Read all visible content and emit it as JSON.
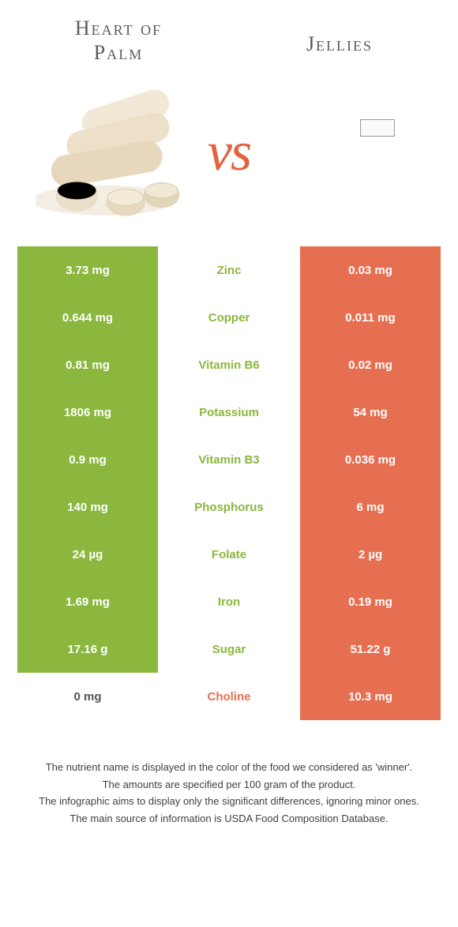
{
  "header": {
    "left_title": "Heart of Palm",
    "right_title": "Jellies",
    "vs": "vs"
  },
  "colors": {
    "left_food": "#8bb73e",
    "right_food": "#e76f51",
    "text_dark": "#555555",
    "background": "#ffffff"
  },
  "table": {
    "rows": [
      {
        "nutrient": "Zinc",
        "left": "3.73 mg",
        "right": "0.03 mg",
        "winner": "left"
      },
      {
        "nutrient": "Copper",
        "left": "0.644 mg",
        "right": "0.011 mg",
        "winner": "left"
      },
      {
        "nutrient": "Vitamin B6",
        "left": "0.81 mg",
        "right": "0.02 mg",
        "winner": "left"
      },
      {
        "nutrient": "Potassium",
        "left": "1806 mg",
        "right": "54 mg",
        "winner": "left"
      },
      {
        "nutrient": "Vitamin B3",
        "left": "0.9 mg",
        "right": "0.036 mg",
        "winner": "left"
      },
      {
        "nutrient": "Phosphorus",
        "left": "140 mg",
        "right": "6 mg",
        "winner": "left"
      },
      {
        "nutrient": "Folate",
        "left": "24 µg",
        "right": "2 µg",
        "winner": "left"
      },
      {
        "nutrient": "Iron",
        "left": "1.69 mg",
        "right": "0.19 mg",
        "winner": "left"
      },
      {
        "nutrient": "Sugar",
        "left": "17.16 g",
        "right": "51.22 g",
        "winner": "left"
      },
      {
        "nutrient": "Choline",
        "left": "0 mg",
        "right": "10.3 mg",
        "winner": "right"
      }
    ]
  },
  "footer": {
    "line1": "The nutrient name is displayed in the color of the food we considered as 'winner'.",
    "line2": "The amounts are specified per 100 gram of the product.",
    "line3": "The infographic aims to display only the significant differences, ignoring minor ones.",
    "line4": "The main source of information is USDA Food Composition Database."
  }
}
